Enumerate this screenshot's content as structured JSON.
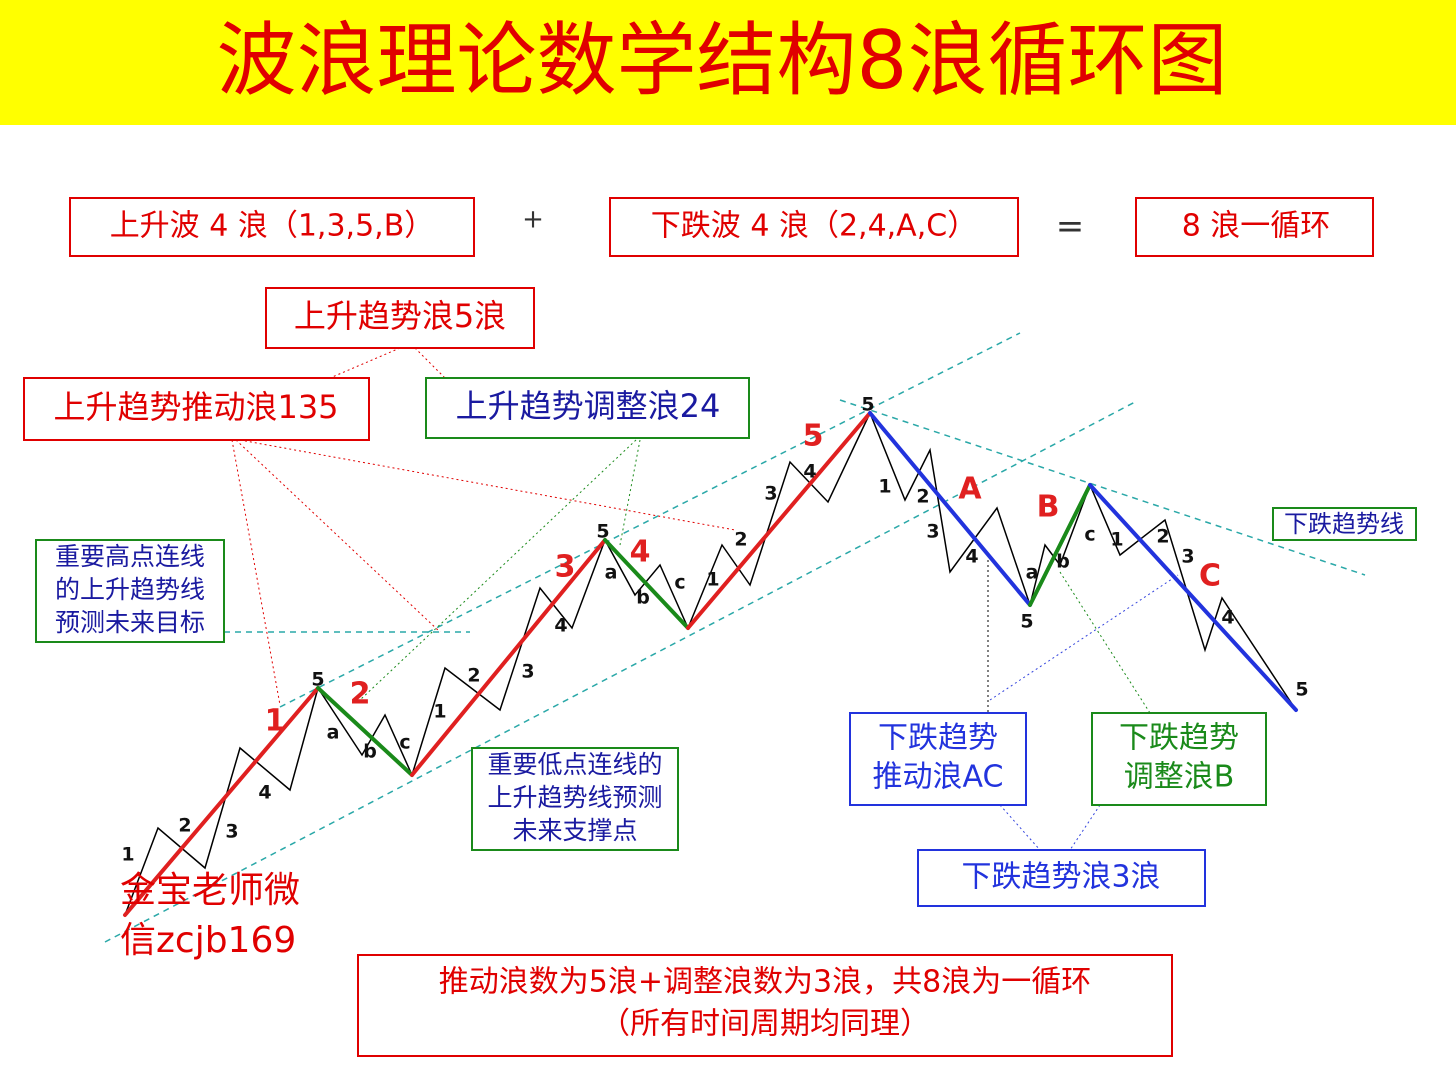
{
  "header": {
    "title": "波浪理论数学结构8浪循环图"
  },
  "formula": {
    "up": "上升波 4 浪（1,3,5,B）",
    "plus": "+",
    "down": "下跌波 4 浪（2,4,A,C）",
    "equals": "=",
    "result": "8 浪一循环"
  },
  "callouts": {
    "up_trend_5": "上升趋势浪5浪",
    "up_impulse": "上升趋势推动浪135",
    "up_correction": "上升趋势调整浪24",
    "high_line": [
      "重要高点连线",
      "的上升趋势线",
      "预测未来目标"
    ],
    "low_line": [
      "重要低点连线的",
      "上升趋势线预测",
      "未来支撑点"
    ],
    "down_line": "下跌趋势线",
    "down_impulse": [
      "下跌趋势",
      "推动浪AC"
    ],
    "down_correction": [
      "下跌趋势",
      "调整浪B"
    ],
    "down_trend_3": "下跌趋势浪3浪",
    "author": [
      "金宝老师微",
      "信zcjb169"
    ]
  },
  "footer": {
    "lines": [
      "推动浪数为5浪+调整浪数为3浪，共8浪为一循环",
      "（所有时间周期均同理）"
    ]
  },
  "main_wave_labels": [
    "1",
    "2",
    "3",
    "4",
    "5",
    "A",
    "B",
    "C"
  ],
  "sub_wave_labels": [
    "1",
    "2",
    "3",
    "4",
    "5",
    "a",
    "b",
    "c",
    "1",
    "2",
    "3",
    "4",
    "5",
    "a",
    "b",
    "c",
    "1",
    "2",
    "3",
    "4",
    "5",
    "1",
    "2",
    "3",
    "4",
    "5",
    "a",
    "b",
    "c",
    "1",
    "2",
    "3",
    "4",
    "5"
  ]
}
